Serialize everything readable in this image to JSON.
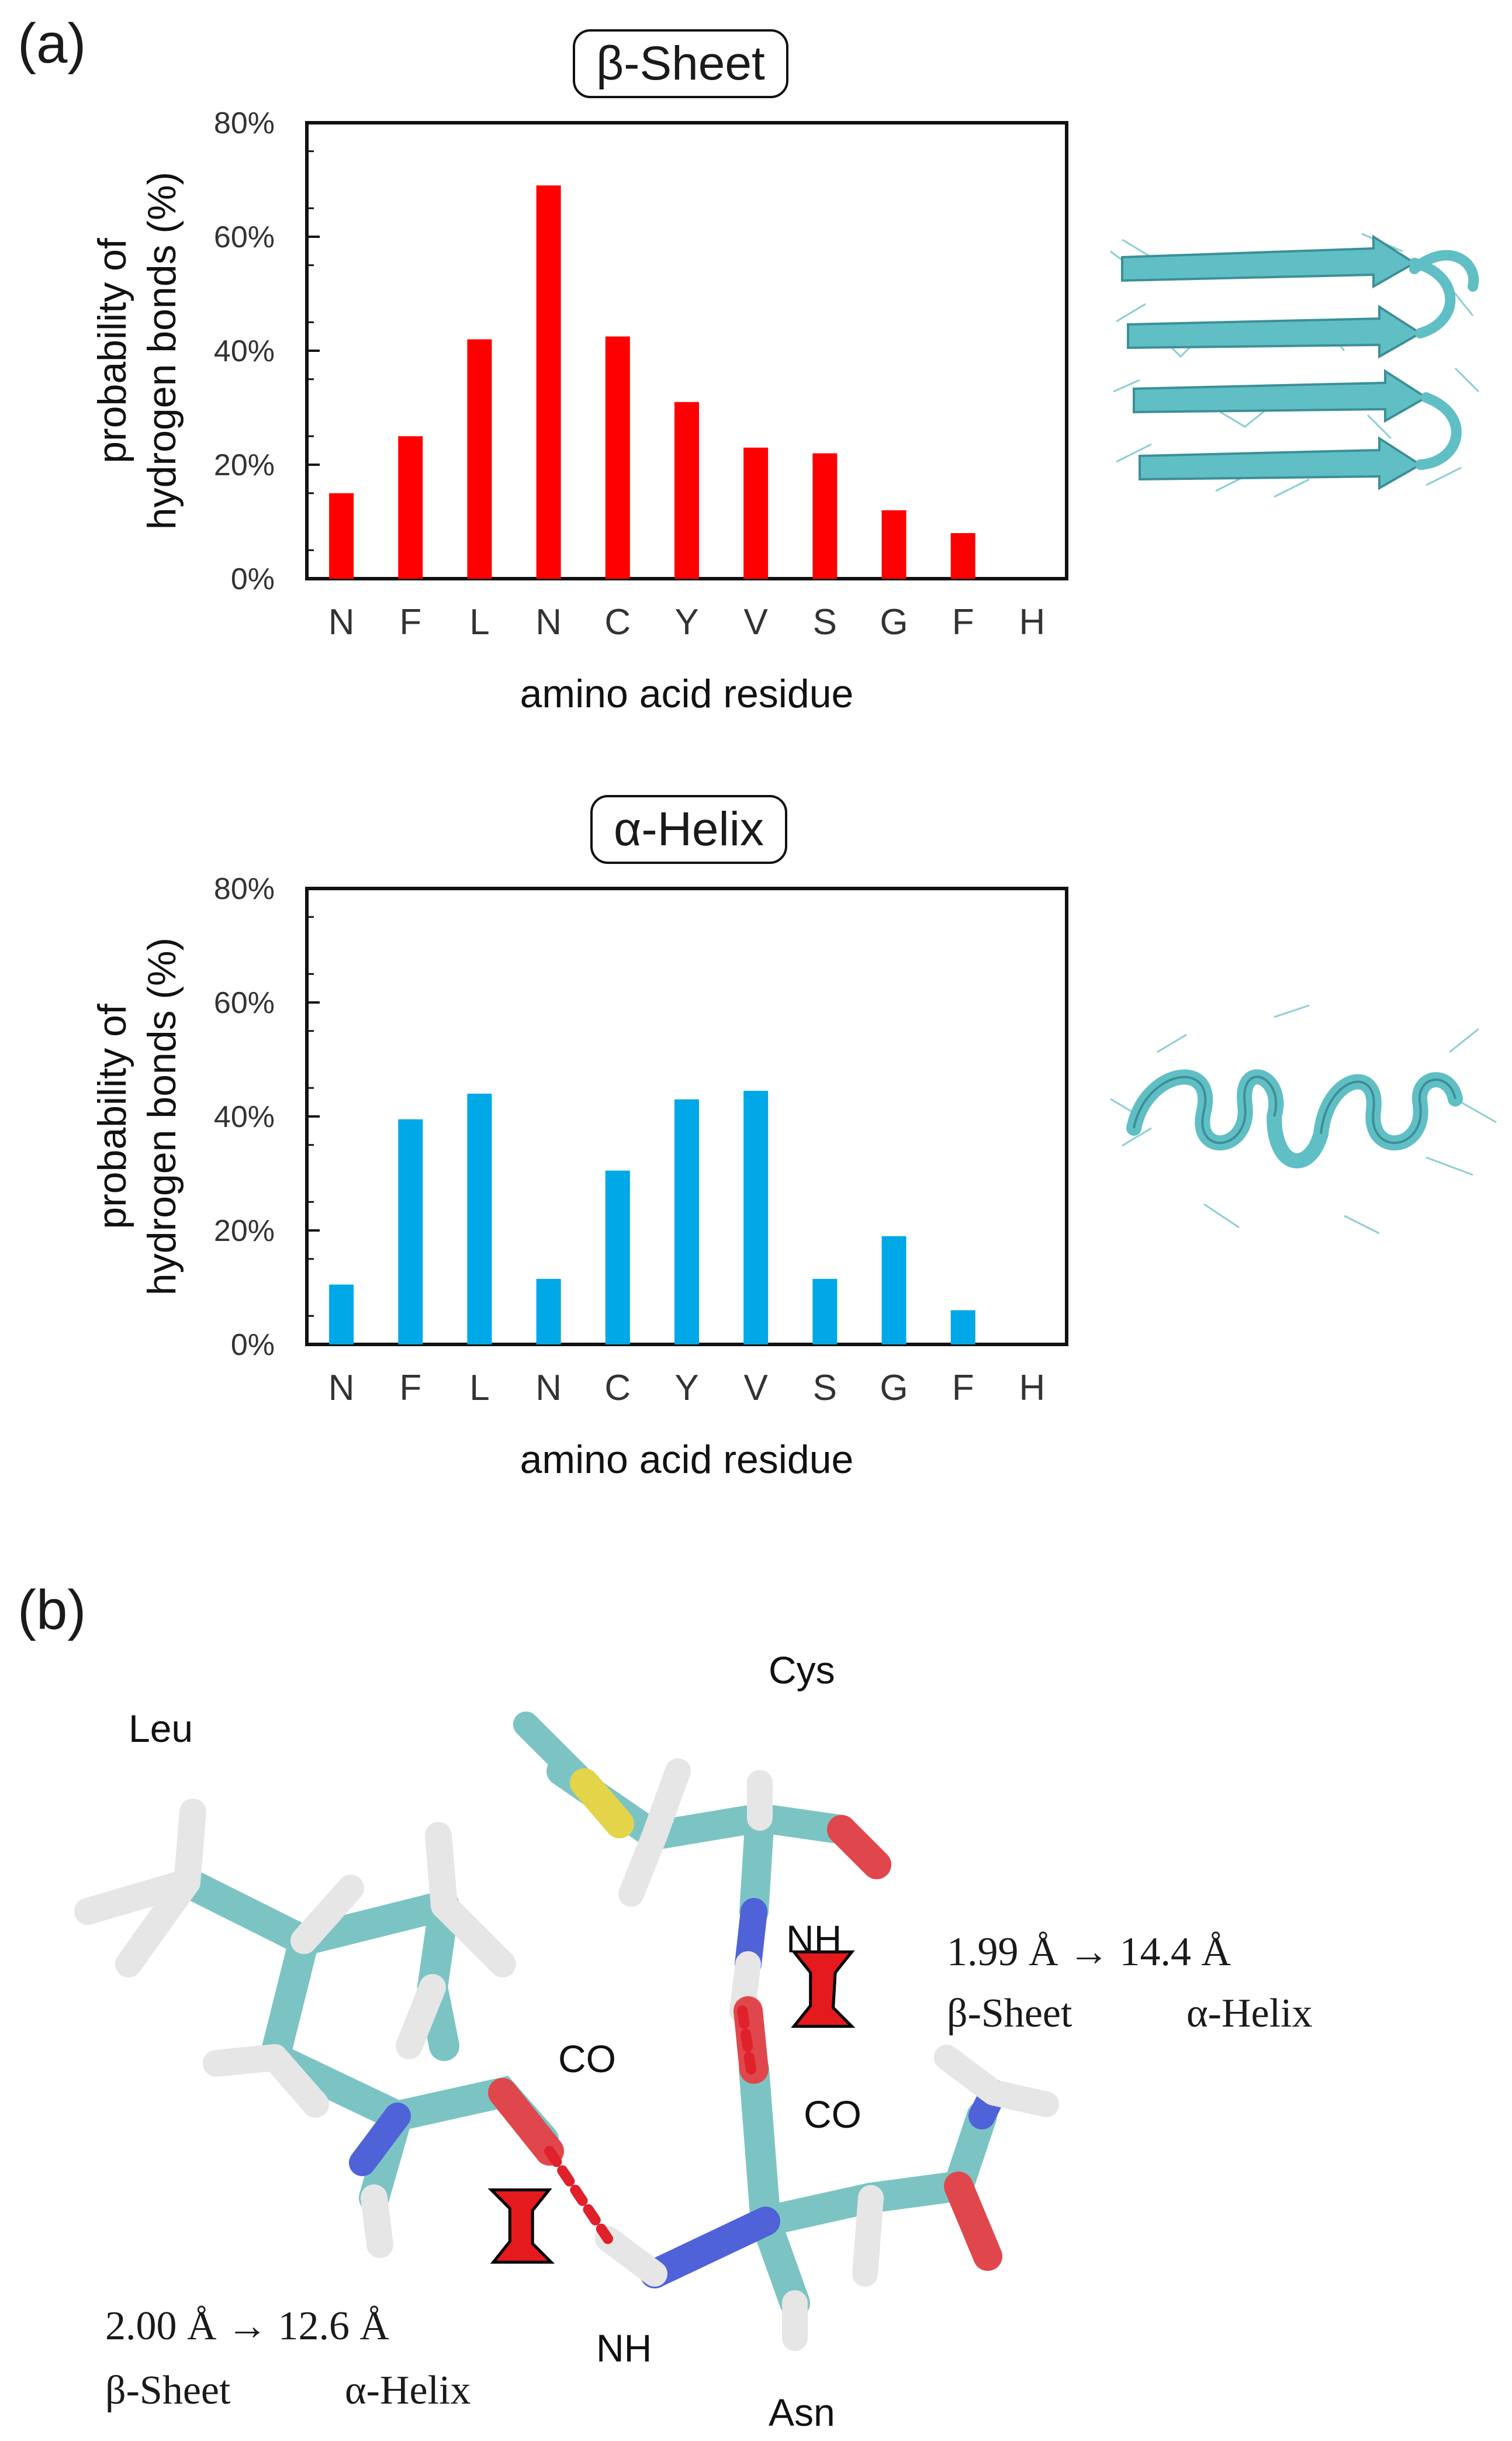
{
  "panels": {
    "a": "(a)",
    "b": "(b)"
  },
  "chart_data": [
    {
      "type": "bar",
      "title": "β-Sheet",
      "xlabel": "amino acid residue",
      "ylabel": [
        "probability of",
        "hydrogen bonds (%)"
      ],
      "ylim": [
        0,
        80
      ],
      "yticks": [
        "0%",
        "20%",
        "40%",
        "60%",
        "80%"
      ],
      "categories": [
        "N",
        "F",
        "L",
        "N",
        "C",
        "Y",
        "V",
        "S",
        "G",
        "F",
        "H"
      ],
      "values": [
        15,
        25,
        42,
        69,
        42.5,
        31,
        23,
        22,
        12,
        8,
        0
      ],
      "color": "#ff0000",
      "grid": false
    },
    {
      "type": "bar",
      "title": "α-Helix",
      "xlabel": "amino acid residue",
      "ylabel": [
        "probability of",
        "hydrogen bonds (%)"
      ],
      "ylim": [
        0,
        80
      ],
      "yticks": [
        "0%",
        "20%",
        "40%",
        "60%",
        "80%"
      ],
      "categories": [
        "N",
        "F",
        "L",
        "N",
        "C",
        "Y",
        "V",
        "S",
        "G",
        "F",
        "H"
      ],
      "values": [
        10.5,
        39.5,
        44,
        11.5,
        30.5,
        43,
        44.5,
        11.5,
        19,
        6,
        0
      ],
      "color": "#00a8e8",
      "grid": false
    }
  ],
  "molecule": {
    "residues": {
      "leu": "Leu",
      "cys": "Cys",
      "asn": "Asn"
    },
    "groups": {
      "co1": "CO",
      "nh1": "NH",
      "co2": "CO",
      "nh2": "NH"
    },
    "bond_upper": {
      "distance": "1.99 Å → 14.4 Å",
      "state1": "β-Sheet",
      "state2": "α-Helix"
    },
    "bond_lower": {
      "distance": "2.00 Å → 12.6 Å",
      "state1": "β-Sheet",
      "state2": "α-Helix"
    },
    "colors": {
      "carbon": "#7fc6c6",
      "hydrogen": "#e8e8e8",
      "oxygen": "#e0474c",
      "nitrogen": "#4c5fd8",
      "sulfur": "#e3d44a",
      "hbond": "#e0202a",
      "arrow": "#e41a1c"
    }
  }
}
